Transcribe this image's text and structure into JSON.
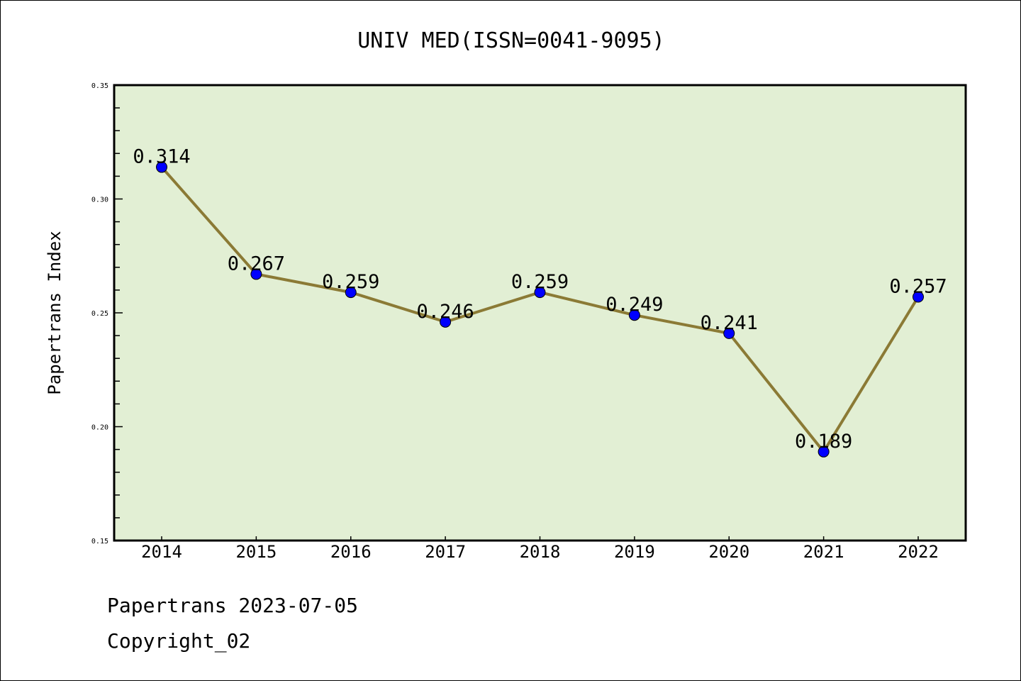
{
  "chart_data": {
    "type": "line",
    "title": "UNIV MED(ISSN=0041-9095)",
    "xlabel": "",
    "ylabel": "Papertrans Index",
    "categories": [
      "2014",
      "2015",
      "2016",
      "2017",
      "2018",
      "2019",
      "2020",
      "2021",
      "2022"
    ],
    "values": [
      0.314,
      0.267,
      0.259,
      0.246,
      0.259,
      0.249,
      0.241,
      0.189,
      0.257
    ],
    "data_labels": [
      "0.314",
      "0.267",
      "0.259",
      "0.246",
      "0.259",
      "0.249",
      "0.241",
      "0.189",
      "0.257"
    ],
    "ylim": [
      0.15,
      0.35
    ],
    "yticks": [
      "0.15",
      "0.20",
      "0.25",
      "0.30",
      "0.35"
    ],
    "grid": false,
    "colors": {
      "line": "#8b7a35",
      "marker": "#0000ff",
      "plot_bg": "#e2efd4"
    }
  },
  "footer": {
    "line1": "Papertrans 2023-07-05",
    "line2": "Copyright_02"
  }
}
